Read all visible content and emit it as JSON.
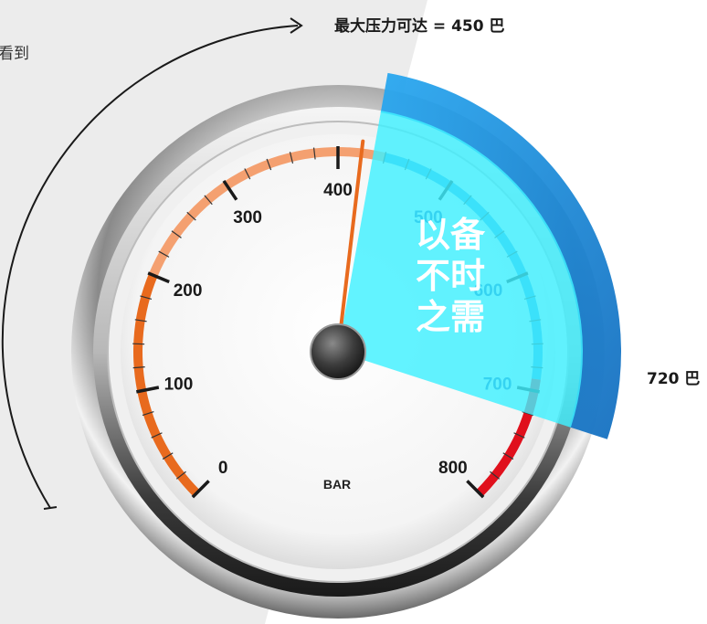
{
  "texts": {
    "top_left": "看到",
    "top_pressure": "最大压力可达 = 450 巴",
    "right_pressure": "720 巴",
    "unit": "BAR",
    "promo_lines": [
      "以备",
      "不时",
      "之需"
    ]
  },
  "gauge": {
    "tick_labels": [
      "0",
      "100",
      "200",
      "300",
      "400",
      "500",
      "600",
      "700",
      "800"
    ],
    "needle_value": 420,
    "max_value": 800,
    "highlight_from_value": 430,
    "highlight_to_value": 720
  },
  "colors": {
    "orange": "#e86a1e",
    "orange_light": "#f4a070",
    "blue": "#2a9de0",
    "cyan": "#3ff0ff",
    "red": "#e0101c",
    "dark": "#222222"
  },
  "icons": {
    "arc_arrow": "curved-arrow-icon"
  }
}
